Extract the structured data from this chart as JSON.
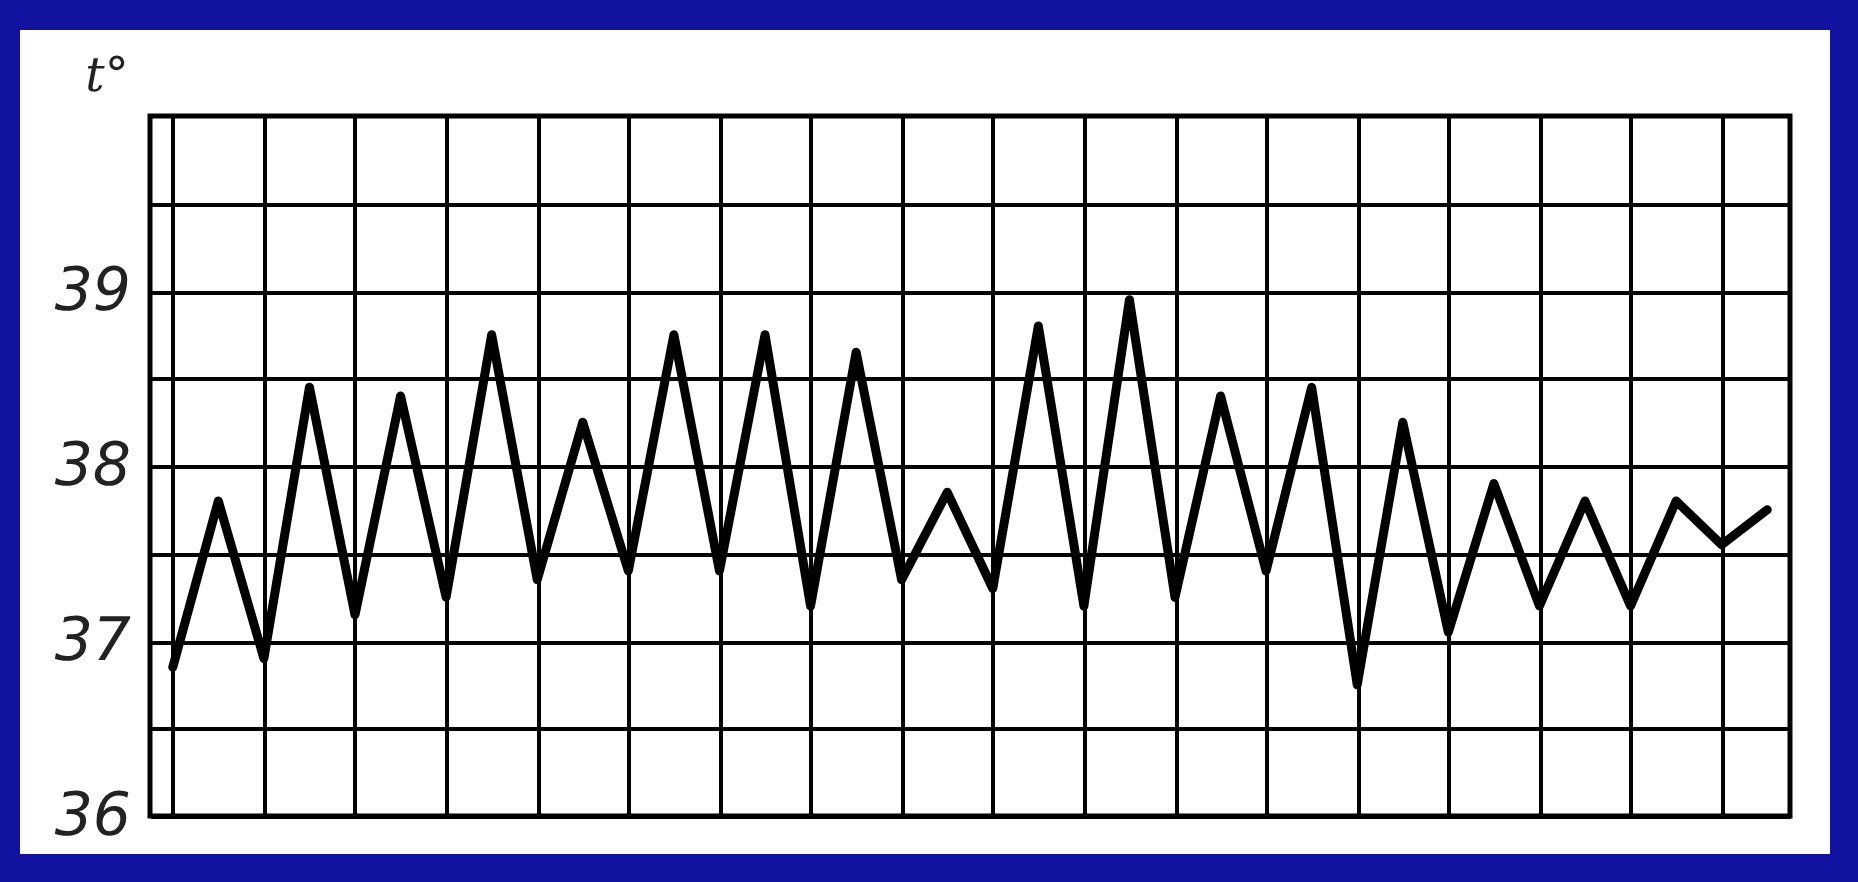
{
  "chart_data": {
    "type": "line",
    "ylabel": "t°",
    "categories": [
      null,
      null,
      null,
      null,
      null,
      null,
      null,
      null,
      null,
      null,
      null,
      null,
      null,
      null,
      null,
      null,
      null,
      null,
      null,
      null,
      null,
      null,
      null,
      null,
      null,
      null,
      null,
      null,
      null,
      null,
      null,
      null,
      null,
      null,
      null,
      null
    ],
    "series": [
      {
        "color": "#000000",
        "line_style": "solid",
        "values": [
          36.85,
          37.8,
          36.9,
          38.45,
          37.15,
          38.4,
          37.25,
          38.75,
          37.35,
          38.25,
          37.4,
          38.75,
          37.4,
          38.75,
          37.2,
          38.65,
          37.35,
          37.85,
          37.3,
          38.8,
          37.2,
          38.95,
          37.25,
          38.4,
          37.4,
          38.45,
          36.75,
          38.25,
          37.05,
          37.9,
          37.2,
          37.8,
          37.2,
          37.8,
          37.55,
          37.75
        ]
      }
    ],
    "ylim": [
      36,
      40
    ],
    "yticks": [
      36,
      {
        "value": 36.5,
        "label": null
      },
      37,
      {
        "value": 37.5,
        "label": null
      },
      38,
      {
        "value": 38.5,
        "label": null
      },
      39,
      {
        "value": 39.5,
        "label": null
      }
    ],
    "grid": true,
    "tick_labels": "y"
  }
}
